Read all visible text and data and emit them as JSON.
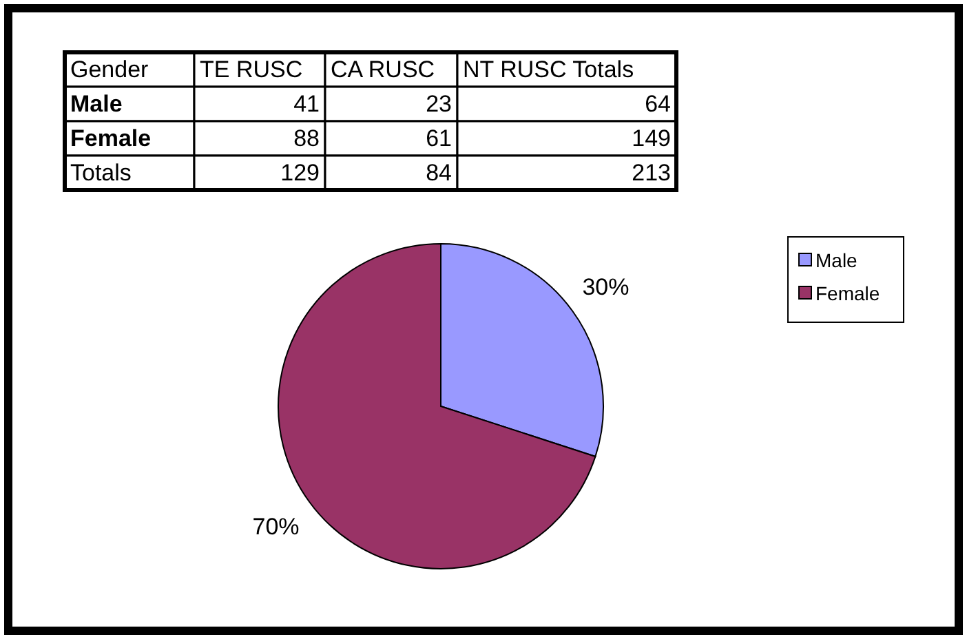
{
  "chart_data": [
    {
      "type": "other",
      "ylabel": "Gender",
      "categories": [
        "TE RUSC",
        "CA RUSC",
        "NT RUSC Totals"
      ],
      "y_categories": [
        "Male",
        "Female",
        "Totals"
      ],
      "cell_labels": [
        [
          "41",
          "23",
          "64"
        ],
        [
          "88",
          "61",
          "149"
        ],
        [
          "129",
          "84",
          "213"
        ]
      ]
    },
    {
      "type": "pie",
      "categories": [
        "Male",
        "Female"
      ],
      "values": [
        30,
        70
      ],
      "colors": [
        "#9999ff",
        "#993366"
      ],
      "value_labels": [
        "30%",
        "70%"
      ],
      "legend": "top right"
    }
  ]
}
